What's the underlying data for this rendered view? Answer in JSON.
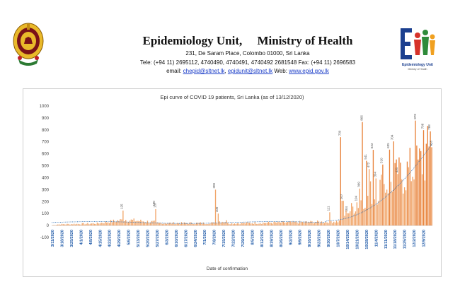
{
  "header": {
    "title": "Epidemiology Unit,     Ministry of Health",
    "address": "231, De Saram Place, Colombo 01000, Sri Lanka",
    "phone": "Tele: (+94 11) 2695112, 4740490, 4740491, 4740492 2681548  Fax: (+94 11) 2696583",
    "email_label": "email: ",
    "email_1": "chepid@sltnet.lk",
    "email_sep": ", ",
    "email_2": "epidunit@sltnet.lk",
    "web_label": " Web: ",
    "web": "www.epid.gov.lk"
  },
  "logo": {
    "caption": "Epidemiology Unit",
    "subcaption": "Ministry of Health"
  },
  "colors": {
    "bar": "#f1a66b",
    "bar_highlight": "#e8823a",
    "axis_label": "#1f5aa8",
    "trend": "#2b6cb0"
  },
  "chart_data": {
    "type": "bar",
    "title": "Epi curve of COVID 19 patients, Sri Lanka  (as of 13/12/2020)",
    "xlabel": "Date of confirmation",
    "ylabel": "",
    "ylim": [
      -100,
      1000
    ],
    "yticks": [
      -100,
      0,
      100,
      200,
      300,
      400,
      500,
      600,
      700,
      800,
      900,
      1000
    ],
    "grid": false,
    "legend": "none",
    "x_tick_labels": [
      "3/11/2020",
      "3/18/2020",
      "3/25/2020",
      "4/1/2020",
      "4/8/2020",
      "4/15/2020",
      "4/22/2020",
      "4/29/2020",
      "5/6/2020",
      "5/13/2020",
      "5/20/2020",
      "5/27/2020",
      "6/3/2020",
      "6/10/2020",
      "6/17/2020",
      "6/24/2020",
      "7/1/2020",
      "7/8/2020",
      "7/15/2020",
      "7/22/2020",
      "7/29/2020",
      "8/5/2020",
      "8/12/2020",
      "8/19/2020",
      "8/26/2020",
      "9/2/2020",
      "9/9/2020",
      "9/16/2020",
      "9/23/2020",
      "9/30/2020",
      "10/7/2020",
      "10/14/2020",
      "10/21/2020",
      "10/28/2020",
      "11/4/2020",
      "11/11/2020",
      "11/18/2020",
      "11/25/2020",
      "12/2/2020",
      "12/9/2020"
    ],
    "series": [
      {
        "label_points": [
          {
            "week": 7.4,
            "value": 125
          },
          {
            "week": 10.8,
            "value": 150
          },
          {
            "week": 10.9,
            "value": 137
          },
          {
            "week": 17.1,
            "value": 300
          },
          {
            "week": 17.4,
            "value": 100
          },
          {
            "week": 29.1,
            "value": 111
          },
          {
            "week": 30.3,
            "value": 739
          },
          {
            "week": 30.5,
            "value": 207
          },
          {
            "week": 31.0,
            "value": 104
          },
          {
            "week": 32.0,
            "value": 194
          },
          {
            "week": 32.3,
            "value": 309
          },
          {
            "week": 32.6,
            "value": 866
          },
          {
            "week": 33.0,
            "value": 541
          },
          {
            "week": 33.3,
            "value": 472
          },
          {
            "week": 33.7,
            "value": 633
          },
          {
            "week": 34.0,
            "value": 394
          },
          {
            "week": 34.7,
            "value": 510
          },
          {
            "week": 35.4,
            "value": 635
          },
          {
            "week": 35.8,
            "value": 704
          },
          {
            "week": 36.3,
            "value": 431
          },
          {
            "week": 38.2,
            "value": 878
          },
          {
            "week": 39.0,
            "value": 798
          },
          {
            "week": 39.7,
            "value": 788
          },
          {
            "week": 39.9,
            "value": 655
          }
        ]
      }
    ]
  }
}
